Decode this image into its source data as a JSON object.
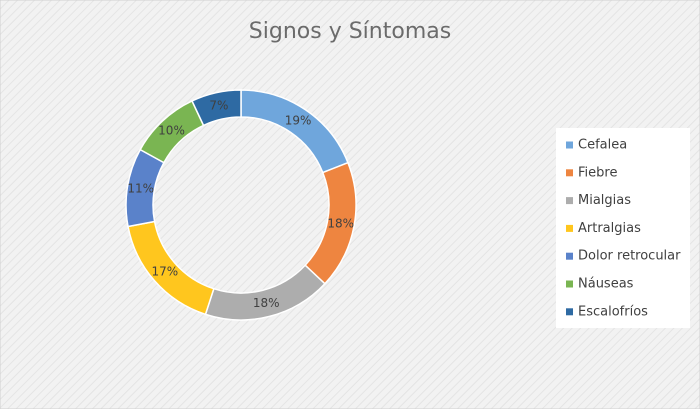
{
  "chart_data": {
    "type": "doughnut",
    "title": "Signos y Síntomas",
    "categories": [
      "Cefalea",
      "Fiebre",
      "Mialgias",
      "Artralgias",
      "Dolor retrocular",
      "Náuseas",
      "Escalofríos"
    ],
    "values": [
      19,
      18,
      18,
      17,
      11,
      10,
      7
    ],
    "value_labels": [
      "19%",
      "18%",
      "18%",
      "17%",
      "11%",
      "10%",
      "7%"
    ],
    "colors": [
      "#6fa6dc",
      "#ee8540",
      "#adadad",
      "#ffc61e",
      "#5a82ca",
      "#7ab552",
      "#2e6aa3"
    ],
    "legend": "right"
  }
}
